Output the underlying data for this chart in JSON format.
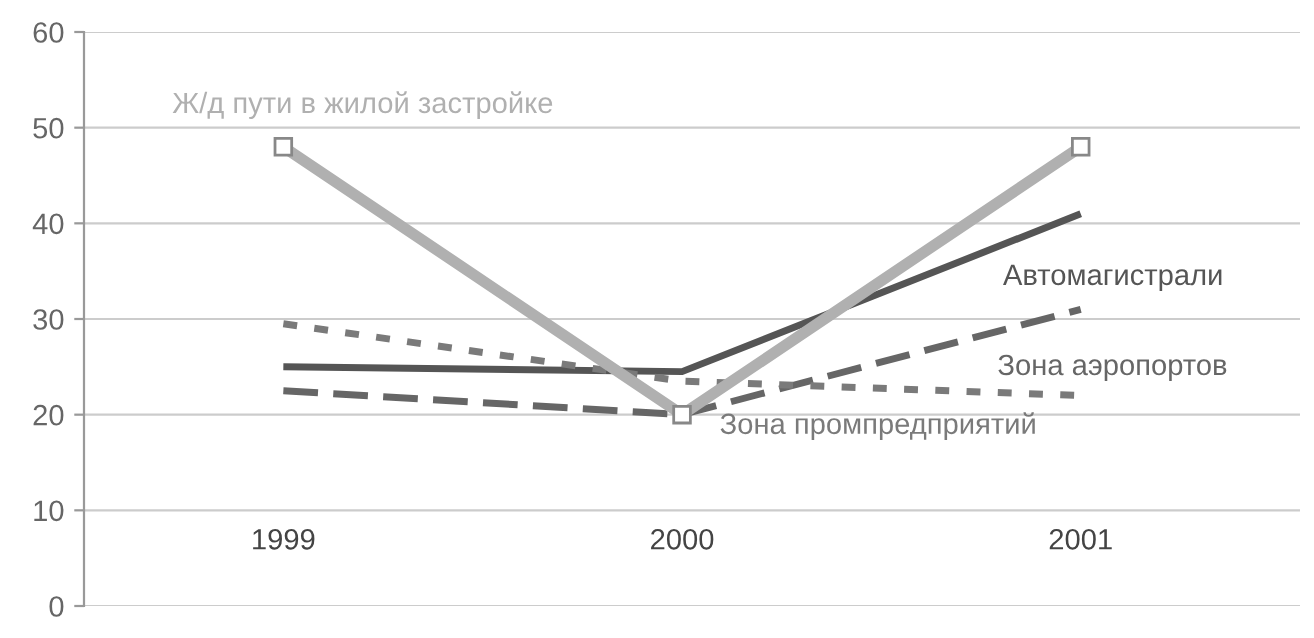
{
  "chart_data": {
    "type": "line",
    "categories": [
      "1999",
      "2000",
      "2001"
    ],
    "series": [
      {
        "name": "Ж/д пути в жилой застройке",
        "color": "#b0b0b0",
        "values": [
          48,
          20,
          48
        ],
        "marker": "square",
        "line_style": "solid"
      },
      {
        "name": "Автомагистрали",
        "color": "#555555",
        "values": [
          25,
          24.5,
          41
        ],
        "marker": "none",
        "line_style": "solid"
      },
      {
        "name": "Зона аэропортов",
        "color": "#666666",
        "values": [
          22.5,
          20,
          31
        ],
        "marker": "none",
        "line_style": "dashed"
      },
      {
        "name": "Зона промпредприятий",
        "color": "#7a7a7a",
        "values": [
          29.5,
          23.5,
          22
        ],
        "marker": "none",
        "line_style": "dotted"
      }
    ],
    "ylim": [
      0,
      60
    ],
    "yticks": [
      0,
      10,
      20,
      30,
      40,
      50,
      60
    ],
    "grid": "y",
    "legend": false
  }
}
